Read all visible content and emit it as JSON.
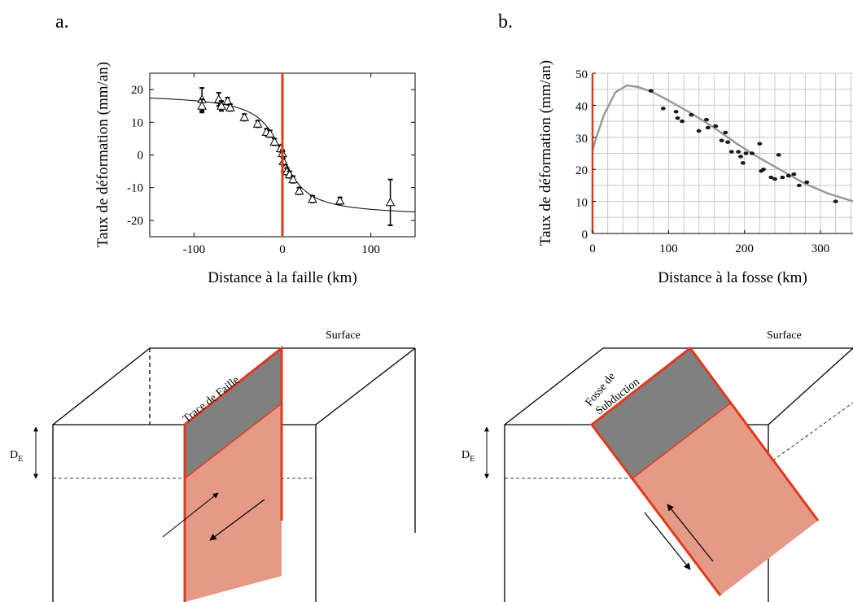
{
  "panels": {
    "a": "a.",
    "b": "b."
  },
  "colors": {
    "fault": "#e03a1c",
    "locked": "#808080",
    "slip": "#e49a86"
  },
  "chart_data": [
    {
      "type": "scatter",
      "xlabel": "Distance à la faille (km)",
      "ylabel": "Taux de déformation (mm/an)",
      "xlim": [
        -150,
        150
      ],
      "ylim": [
        -25,
        25
      ],
      "xticks": [
        "-100",
        "0",
        "100"
      ],
      "yticks": [
        "20",
        "10",
        "0",
        "-10",
        "-20"
      ],
      "fault_position": 0,
      "points": [
        {
          "x": -91,
          "y": 17,
          "err": 3.5
        },
        {
          "x": -91,
          "y": 15,
          "err": 2
        },
        {
          "x": -72,
          "y": 17,
          "err": 2
        },
        {
          "x": -69,
          "y": 15,
          "err": 1.5
        },
        {
          "x": -62,
          "y": 16.5,
          "err": 1
        },
        {
          "x": -59,
          "y": 14.5,
          "err": 1
        },
        {
          "x": -43,
          "y": 11.5,
          "err": 1
        },
        {
          "x": -28,
          "y": 9.5,
          "err": 1
        },
        {
          "x": -18,
          "y": 7,
          "err": 1
        },
        {
          "x": -14,
          "y": 6.5,
          "err": 1
        },
        {
          "x": -9,
          "y": 4,
          "err": 1
        },
        {
          "x": -2,
          "y": 2,
          "err": 1
        },
        {
          "x": 0,
          "y": 0.5,
          "err": 1
        },
        {
          "x": 1,
          "y": -2,
          "err": 1
        },
        {
          "x": 3,
          "y": -4,
          "err": 1
        },
        {
          "x": 5,
          "y": -5,
          "err": 1
        },
        {
          "x": 8,
          "y": -6,
          "err": 1
        },
        {
          "x": 12,
          "y": -7.5,
          "err": 1
        },
        {
          "x": 19,
          "y": -11,
          "err": 1
        },
        {
          "x": 34,
          "y": -13.5,
          "err": 1
        },
        {
          "x": 65,
          "y": -14,
          "err": 1
        },
        {
          "x": 122,
          "y": -14.5,
          "err": 7
        }
      ],
      "model_curve": {
        "amplitude": 19,
        "locking_depth_km": 20
      }
    },
    {
      "type": "scatter",
      "xlabel": "Distance à la fosse (km)",
      "ylabel": "Taux de déformation (mm/an)",
      "xlim": [
        0,
        350
      ],
      "ylim": [
        0,
        50
      ],
      "xticks": [
        "0",
        "100",
        "200",
        "300"
      ],
      "yticks": [
        "50",
        "40",
        "30",
        "20",
        "10",
        "0"
      ],
      "grid": true,
      "trench_position": 0,
      "points": [
        [
          77,
          44.5
        ],
        [
          93,
          39
        ],
        [
          110,
          38
        ],
        [
          112,
          36
        ],
        [
          118,
          35
        ],
        [
          130,
          37
        ],
        [
          140,
          32
        ],
        [
          150,
          35.5
        ],
        [
          152,
          33
        ],
        [
          162,
          33.5
        ],
        [
          170,
          29
        ],
        [
          175,
          31.5
        ],
        [
          178,
          28.5
        ],
        [
          183,
          25.5
        ],
        [
          192,
          25.5
        ],
        [
          195,
          24
        ],
        [
          198,
          22
        ],
        [
          202,
          25
        ],
        [
          210,
          25
        ],
        [
          220,
          28
        ],
        [
          222,
          19.5
        ],
        [
          225,
          20
        ],
        [
          235,
          17.5
        ],
        [
          240,
          17
        ],
        [
          245,
          24.5
        ],
        [
          250,
          17.5
        ],
        [
          258,
          18
        ],
        [
          265,
          18.5
        ],
        [
          272,
          15
        ],
        [
          282,
          16
        ],
        [
          320,
          10
        ]
      ],
      "model_curve": [
        [
          0,
          26
        ],
        [
          5,
          30
        ],
        [
          15,
          37
        ],
        [
          30,
          44
        ],
        [
          45,
          46.2
        ],
        [
          60,
          45.7
        ],
        [
          80,
          44
        ],
        [
          100,
          41.5
        ],
        [
          130,
          37.5
        ],
        [
          160,
          33
        ],
        [
          190,
          28
        ],
        [
          220,
          23.5
        ],
        [
          250,
          19.5
        ],
        [
          280,
          15.5
        ],
        [
          310,
          12.5
        ],
        [
          350,
          9.5
        ]
      ]
    }
  ],
  "diagram_a": {
    "surface": "Surface",
    "fault_trace": "Trace de Faille",
    "depth_label": "D",
    "depth_sub": "E"
  },
  "diagram_b": {
    "surface": "Surface",
    "trench_line1": "Fosse de",
    "trench_line2": "Subduction",
    "depth_label": "D",
    "depth_sub": "E"
  }
}
